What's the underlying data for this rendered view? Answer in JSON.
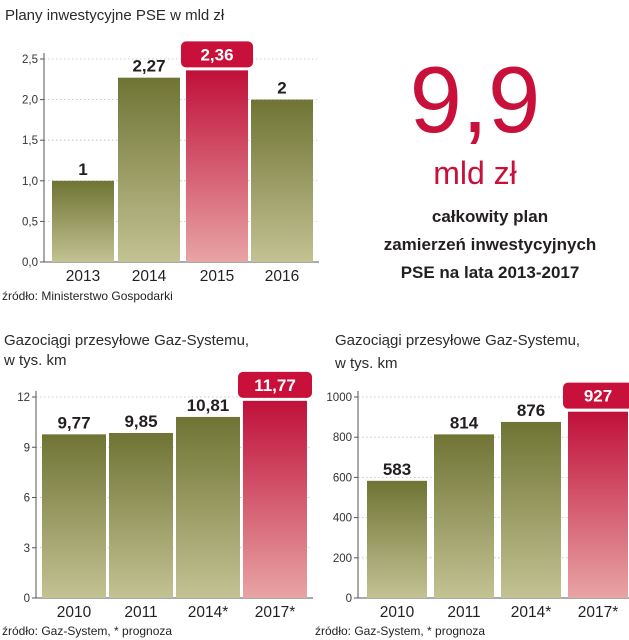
{
  "colors": {
    "olive_top": "#6f7434",
    "olive_bottom": "#c3c293",
    "red_top": "#c0103a",
    "red_bottom": "#e8a4a4",
    "highlight_badge": "#c8103a",
    "axis": "#555555",
    "grid": "#bdbdbd"
  },
  "headline": {
    "value": "9,9",
    "unit": "mld zł",
    "description": [
      "całkowity plan",
      "zamierzeń inwestycyjnych",
      "PSE na lata 2013-2017"
    ]
  },
  "chart_data": [
    {
      "type": "bar",
      "title_lines": [
        "Plany inwestycyjne PSE w mld zł"
      ],
      "categories": [
        "2013",
        "2014",
        "2015",
        "2016"
      ],
      "values": [
        1,
        2.27,
        2.36,
        2
      ],
      "value_labels": [
        "1",
        "2,27",
        "2,36",
        "2"
      ],
      "highlight_index": 2,
      "ylim": [
        0,
        2.5
      ],
      "yticks": [
        0,
        0.5,
        1,
        1.5,
        2,
        2.5
      ],
      "ytick_labels": [
        "0,0",
        "0,5",
        "1,0",
        "1,5",
        "2,0",
        "2,5"
      ],
      "grid": true,
      "source": "źródło: Ministerstwo Gospodarki"
    },
    {
      "type": "bar",
      "title_lines": [
        "Gazociągi przesyłowe Gaz-Systemu,",
        "w tys. km"
      ],
      "categories": [
        "2010",
        "2011",
        "2014*",
        "2017*"
      ],
      "values": [
        9.77,
        9.85,
        10.81,
        11.77
      ],
      "value_labels": [
        "9,77",
        "9,85",
        "10,81",
        "11,77"
      ],
      "highlight_index": 3,
      "ylim": [
        0,
        12
      ],
      "yticks": [
        0,
        3,
        6,
        9,
        12
      ],
      "ytick_labels": [
        "0",
        "3",
        "6",
        "9",
        "12"
      ],
      "grid": true,
      "source": "źródło: Gaz-System, * prognoza"
    },
    {
      "type": "bar",
      "title_lines": [
        "Gazociągi przesyłowe Gaz-Systemu,",
        "w tys. km"
      ],
      "categories": [
        "2010",
        "2011",
        "2014*",
        "2017*"
      ],
      "values": [
        583,
        814,
        876,
        927
      ],
      "value_labels": [
        "583",
        "814",
        "876",
        "927"
      ],
      "highlight_index": 3,
      "ylim": [
        0,
        1000
      ],
      "yticks": [
        0,
        200,
        400,
        600,
        800,
        1000
      ],
      "ytick_labels": [
        "0",
        "200",
        "400",
        "600",
        "800",
        "1000"
      ],
      "grid": true,
      "source": "źródło: Gaz-System, * prognoza"
    }
  ]
}
